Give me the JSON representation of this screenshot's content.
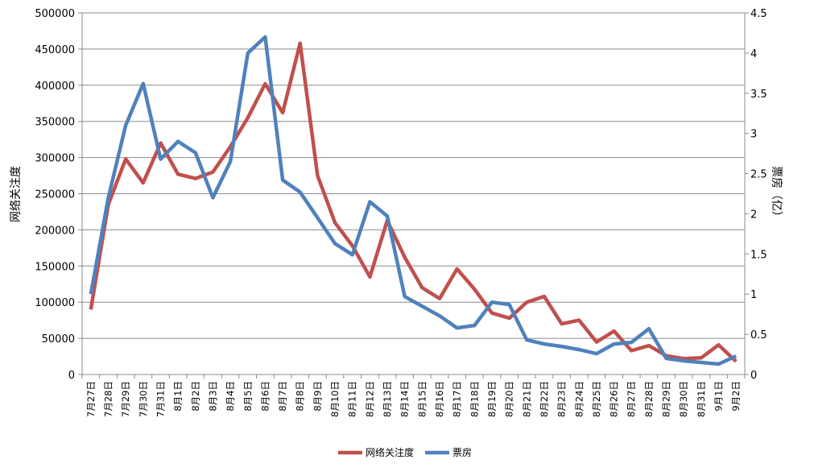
{
  "chart_data": {
    "type": "line",
    "categories": [
      "7月27日",
      "7月28日",
      "7月29日",
      "7月30日",
      "7月31日",
      "8月1日",
      "8月2日",
      "8月3日",
      "8月4日",
      "8月5日",
      "8月6日",
      "8月7日",
      "8月8日",
      "8月9日",
      "8月10日",
      "8月11日",
      "8月12日",
      "8月13日",
      "8月14日",
      "8月15日",
      "8月16日",
      "8月17日",
      "8月18日",
      "8月19日",
      "8月20日",
      "8月21日",
      "8月22日",
      "8月23日",
      "8月24日",
      "8月25日",
      "8月26日",
      "8月27日",
      "8月28日",
      "8月29日",
      "8月30日",
      "8月31日",
      "9月1日",
      "9月2日"
    ],
    "series": [
      {
        "name": "网络关注度",
        "axis": "left",
        "color": "#c0504d",
        "values": [
          90000,
          235000,
          298000,
          265000,
          320000,
          277000,
          271000,
          280000,
          315000,
          355000,
          402000,
          362000,
          458000,
          275000,
          210000,
          178000,
          135000,
          213000,
          162000,
          120000,
          105000,
          146000,
          118000,
          85000,
          78000,
          100000,
          108000,
          70000,
          75000,
          45000,
          60000,
          33000,
          40000,
          26000,
          22000,
          23000,
          41000,
          18000
        ]
      },
      {
        "name": "票房",
        "axis": "right",
        "color": "#4f81bd",
        "values": [
          1.0,
          2.2,
          3.1,
          3.62,
          2.68,
          2.9,
          2.76,
          2.2,
          2.65,
          4.0,
          4.2,
          2.42,
          2.27,
          1.95,
          1.63,
          1.49,
          2.15,
          1.97,
          0.97,
          0.85,
          0.73,
          0.58,
          0.61,
          0.9,
          0.87,
          0.43,
          0.38,
          0.35,
          0.31,
          0.26,
          0.38,
          0.4,
          0.57,
          0.2,
          0.17,
          0.15,
          0.13,
          0.23
        ]
      }
    ],
    "yleft": {
      "label": "网络关注度",
      "ylim": [
        0,
        500000
      ],
      "ticks": [
        0,
        50000,
        100000,
        150000,
        200000,
        250000,
        300000,
        350000,
        400000,
        450000,
        500000
      ]
    },
    "yright": {
      "label": "票房（亿）",
      "ylim": [
        0,
        4.5
      ],
      "ticks": [
        "0",
        "0.5",
        "1",
        "1.5",
        "2",
        "2.5",
        "3",
        "3.5",
        "4",
        "4.5"
      ]
    },
    "grid": true,
    "legend": "bottom"
  }
}
